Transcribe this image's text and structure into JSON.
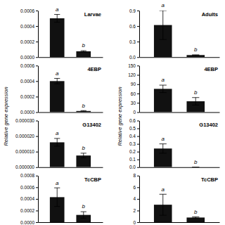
{
  "chart_data": [
    {
      "type": "bar",
      "title": "Larvae",
      "ylabel": "Relative gene expression",
      "categories": [
        null,
        null
      ],
      "values": [
        0.0005,
        7.5e-05
      ],
      "errors": [
        5e-05,
        8e-06
      ],
      "annotations": [
        "a",
        "b"
      ],
      "color": "#111111",
      "ylim": [
        0,
        0.0006
      ],
      "yticks": [
        {
          "value": 0.0,
          "label": "0.0000"
        },
        0.0002,
        0.0004,
        0.0006
      ]
    },
    {
      "type": "bar",
      "title": "Adults",
      "ylabel": "Relative gene expression",
      "categories": [
        null,
        null
      ],
      "values": [
        0.62,
        0.04
      ],
      "errors": [
        0.28,
        0.005
      ],
      "annotations": [
        "a",
        "b"
      ],
      "color": "#111111",
      "ylim": [
        0,
        0.9
      ],
      "yticks": [
        {
          "value": 0.0,
          "label": "0.0"
        },
        0.3,
        0.6,
        0.9
      ]
    },
    {
      "type": "bar",
      "title": "4EBP",
      "categories": [
        null,
        null
      ],
      "values": [
        0.0004,
        1.5e-05
      ],
      "errors": [
        3.5e-05,
        5e-06
      ],
      "annotations": [
        "a",
        "b"
      ],
      "color": "#111111",
      "ylim": [
        0,
        0.0006
      ],
      "yticks": [
        {
          "value": 0.0,
          "label": "0.0000"
        },
        0.0002,
        0.0004,
        0.0006
      ]
    },
    {
      "type": "bar",
      "title": "4EBP",
      "categories": [
        null,
        null
      ],
      "values": [
        75,
        35
      ],
      "errors": [
        12,
        12
      ],
      "annotations": [
        "a",
        "b"
      ],
      "color": "#111111",
      "ylim": [
        0,
        150
      ],
      "yticks": [
        0,
        30,
        60,
        90,
        120,
        150
      ]
    },
    {
      "type": "bar",
      "title": "G13402",
      "categories": [
        null,
        null
      ],
      "values": [
        1.6e-05,
        7.5e-06
      ],
      "errors": [
        2.5e-06,
        1.5e-06
      ],
      "annotations": [
        "a",
        "b"
      ],
      "color": "#111111",
      "ylim": [
        0,
        3e-05
      ],
      "yticks": [
        {
          "value": 0.0,
          "label": "0.000000"
        },
        {
          "value": 1e-05,
          "label": "0.000010"
        },
        {
          "value": 2e-05,
          "label": "0.000020"
        },
        {
          "value": 3e-05,
          "label": "0.000030"
        }
      ]
    },
    {
      "type": "bar",
      "title": "G13402",
      "categories": [
        null,
        null
      ],
      "values": [
        0.24,
        0.0
      ],
      "errors": [
        0.06,
        0.0
      ],
      "annotations": [
        "a",
        "b"
      ],
      "color": "#111111",
      "ylim": [
        0,
        0.6
      ],
      "yticks": [
        {
          "value": 0.0,
          "label": "0.0"
        },
        0.1,
        0.2,
        0.3,
        0.4,
        0.5,
        0.6
      ]
    },
    {
      "type": "bar",
      "title": "TcCBP",
      "categories": [
        null,
        null
      ],
      "values": [
        0.00043,
        0.000125
      ],
      "errors": [
        0.00016,
        5.5e-05
      ],
      "annotations": [
        "a",
        "b"
      ],
      "color": "#111111",
      "ylim": [
        0,
        0.0008
      ],
      "yticks": [
        {
          "value": 0.0,
          "label": "0.0000"
        },
        0.0002,
        0.0004,
        0.0006,
        0.0008
      ]
    },
    {
      "type": "bar",
      "title": "TcCBP",
      "categories": [
        null,
        null
      ],
      "values": [
        3.0,
        0.8
      ],
      "errors": [
        1.8,
        0.12
      ],
      "annotations": [
        "a",
        "b"
      ],
      "color": "#111111",
      "ylim": [
        0,
        8
      ],
      "yticks": [
        0,
        2,
        4,
        6,
        8
      ]
    }
  ]
}
